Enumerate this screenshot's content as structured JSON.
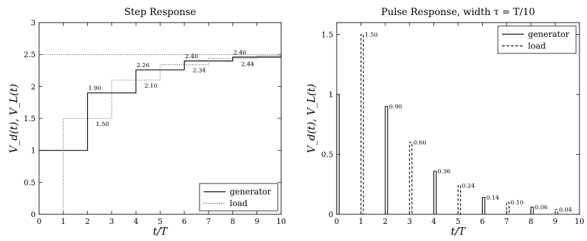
{
  "chart_data": [
    {
      "type": "line",
      "title": "Step Response",
      "xlabel": "t/T",
      "ylabel": "V_d(t), V_L(t)",
      "xlim": [
        0,
        10
      ],
      "ylim": [
        0,
        3
      ],
      "xticks": [
        0,
        1,
        2,
        3,
        4,
        5,
        6,
        7,
        8,
        9,
        10
      ],
      "yticks": [
        0,
        0.5,
        1,
        1.5,
        2,
        2.5,
        3
      ],
      "ytick_labels": [
        "0",
        "0.5",
        "1",
        "1.5",
        "2",
        "2.5",
        "3"
      ],
      "grid": false,
      "legend_position": "bottom-right",
      "series": [
        {
          "name": "generator",
          "style": "solid",
          "x": [
            0,
            2,
            2,
            4,
            4,
            6,
            6,
            8,
            8,
            10
          ],
          "y": [
            1,
            1,
            1.9,
            1.9,
            2.26,
            2.26,
            2.4,
            2.4,
            2.46,
            2.46
          ]
        },
        {
          "name": "load",
          "style": "dotted",
          "x": [
            1,
            1,
            3,
            3,
            5,
            5,
            7,
            7,
            9,
            9,
            10
          ],
          "y": [
            0,
            1.5,
            1.5,
            2.1,
            2.1,
            2.34,
            2.34,
            2.44,
            2.44,
            2.48,
            2.48
          ]
        },
        {
          "name": "",
          "style": "dotted",
          "x": [
            0,
            10
          ],
          "y": [
            2.5,
            2.5
          ]
        }
      ],
      "annotations": [
        {
          "text": "1.90",
          "x": 2.0,
          "y": 1.9,
          "pos": "above-right"
        },
        {
          "text": "2.26",
          "x": 4.0,
          "y": 2.26,
          "pos": "above-right"
        },
        {
          "text": "2.40",
          "x": 6.0,
          "y": 2.4,
          "pos": "above-right"
        },
        {
          "text": "2.46",
          "x": 8.0,
          "y": 2.46,
          "pos": "above-right"
        },
        {
          "text": "1.50",
          "x": 3.0,
          "y": 1.5,
          "pos": "below-left"
        },
        {
          "text": "2.10",
          "x": 5.0,
          "y": 2.1,
          "pos": "below-left"
        },
        {
          "text": "2.34",
          "x": 7.0,
          "y": 2.34,
          "pos": "below-left"
        },
        {
          "text": "2.44",
          "x": 9.0,
          "y": 2.44,
          "pos": "below-left"
        }
      ]
    },
    {
      "type": "bar",
      "title": "Pulse Response,  width  τ = T/10",
      "xlabel": "t/T",
      "ylabel": "V_d(t), V_L(t)",
      "xlim": [
        0,
        10
      ],
      "ylim": [
        0,
        1.6
      ],
      "xticks": [
        0,
        1,
        2,
        3,
        4,
        5,
        6,
        7,
        8,
        9,
        10
      ],
      "yticks": [
        0,
        0.5,
        1,
        1.5
      ],
      "ytick_labels": [
        "0",
        "0.5",
        "1",
        "1.5"
      ],
      "grid": false,
      "legend_position": "top-right",
      "pulse_width": 0.1,
      "series": [
        {
          "name": "generator",
          "style": "solid",
          "x": [
            0,
            2,
            4,
            6,
            8
          ],
          "values": [
            1.0,
            0.9,
            0.36,
            0.14,
            0.06
          ]
        },
        {
          "name": "load",
          "style": "dashed",
          "x": [
            1,
            3,
            5,
            7,
            9
          ],
          "values": [
            1.5,
            0.6,
            0.24,
            0.1,
            0.04
          ]
        }
      ],
      "annotations": [
        {
          "text": "1.50",
          "x": 1,
          "y": 1.5
        },
        {
          "text": "0.90",
          "x": 2,
          "y": 0.9
        },
        {
          "text": "0.60",
          "x": 3,
          "y": 0.6
        },
        {
          "text": "0.36",
          "x": 4,
          "y": 0.36
        },
        {
          "text": "0.24",
          "x": 5,
          "y": 0.24
        },
        {
          "text": "0.14",
          "x": 6,
          "y": 0.14
        },
        {
          "text": "0.10",
          "x": 7,
          "y": 0.1
        },
        {
          "text": "0.06",
          "x": 8,
          "y": 0.06
        },
        {
          "text": "0.04",
          "x": 9,
          "y": 0.04
        }
      ]
    }
  ]
}
